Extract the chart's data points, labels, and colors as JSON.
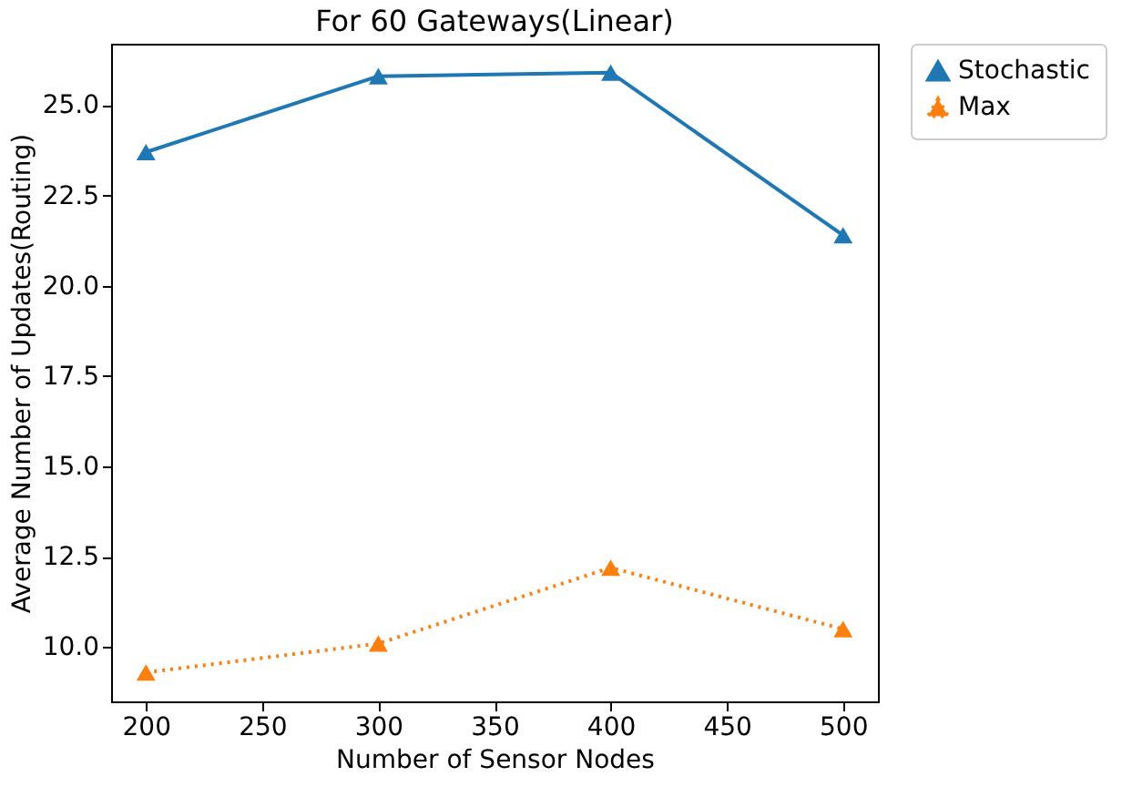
{
  "chart_data": {
    "type": "line",
    "title": "For 60 Gateways(Linear)",
    "xlabel": "Number of Sensor Nodes",
    "ylabel": "Average Number of Updates(Routing)",
    "x": [
      200,
      300,
      400,
      500
    ],
    "series": [
      {
        "name": "Stochastic",
        "color": "#1f77b4",
        "values": [
          23.7,
          25.8,
          25.9,
          21.4
        ],
        "line_style": "solid"
      },
      {
        "name": "Max",
        "color": "#ff7f0e",
        "values": [
          9.3,
          10.1,
          12.2,
          10.5
        ],
        "line_style": "dotted"
      }
    ],
    "xlim": [
      185,
      515
    ],
    "xticks": [
      200,
      250,
      300,
      350,
      400,
      450,
      500
    ],
    "ylim": [
      8.5,
      26.7
    ],
    "yticks": [
      {
        "value": 10,
        "label": "10.0"
      },
      {
        "value": 12.5,
        "label": "12.5"
      },
      {
        "value": 15,
        "label": "15.0"
      },
      {
        "value": 17.5,
        "label": "17.5"
      },
      {
        "value": 20,
        "label": "20.0"
      },
      {
        "value": 22.5,
        "label": "22.5"
      },
      {
        "value": 25,
        "label": "25.0"
      }
    ],
    "grid": false,
    "legend": "right",
    "marker": "triangle"
  }
}
